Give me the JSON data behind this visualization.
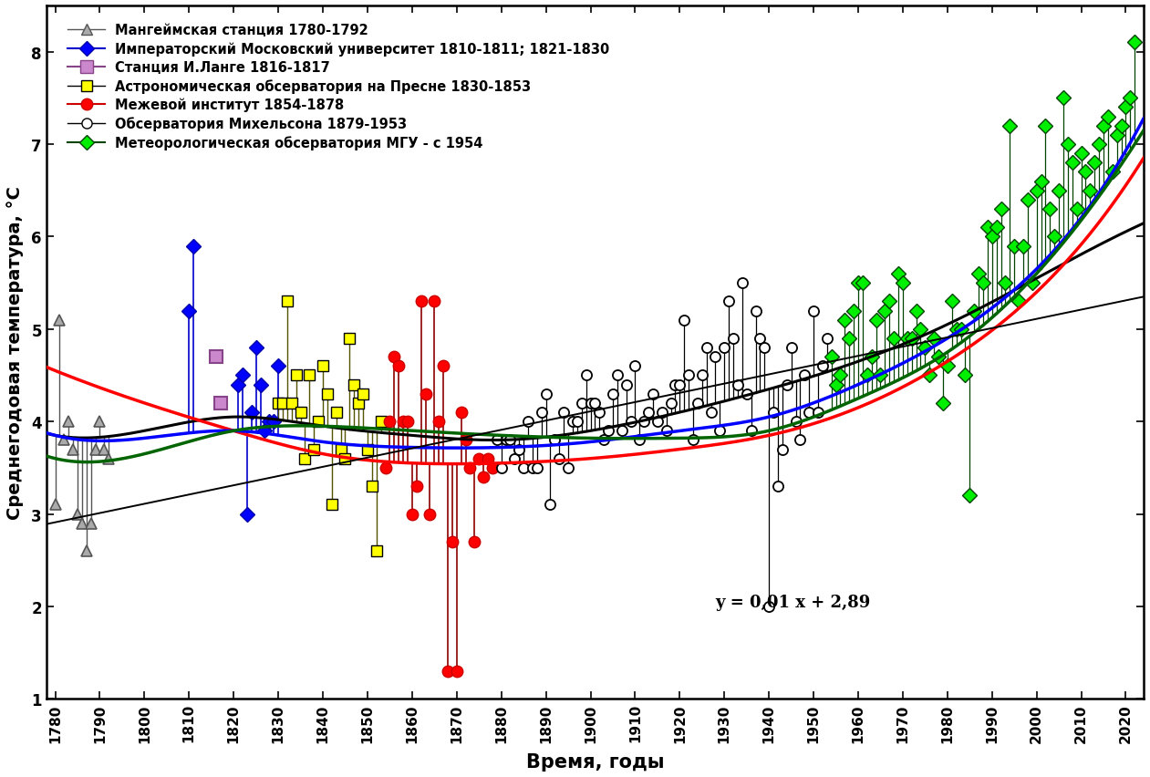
{
  "xlabel": "Время, годы",
  "ylabel": "Среднегодовая температура, °С",
  "xlim": [
    1778,
    2024
  ],
  "ylim": [
    1.0,
    8.5
  ],
  "yticks": [
    1,
    2,
    3,
    4,
    5,
    6,
    7,
    8
  ],
  "xticks": [
    1780,
    1790,
    1800,
    1810,
    1820,
    1830,
    1840,
    1850,
    1860,
    1870,
    1880,
    1890,
    1900,
    1910,
    1920,
    1930,
    1940,
    1950,
    1960,
    1970,
    1980,
    1990,
    2000,
    2010,
    2020
  ],
  "equation_text": "y = 0,01 x + 2,89",
  "equation_x": 1928,
  "equation_y": 2.05,
  "series": {
    "mangheim": {
      "label": "Мангеймская станция 1780-1792",
      "color": "#808080",
      "marker": "^",
      "markersize": 8,
      "years": [
        1780,
        1781,
        1782,
        1783,
        1784,
        1785,
        1786,
        1787,
        1788,
        1789,
        1790,
        1791,
        1792
      ],
      "temps": [
        3.1,
        5.1,
        3.8,
        4.0,
        3.7,
        3.0,
        2.9,
        2.6,
        2.9,
        3.7,
        4.0,
        3.7,
        3.6
      ]
    },
    "imperial": {
      "label": "Императорский Московский университет 1810-1811; 1821-1830",
      "color": "#0000ff",
      "marker": "D",
      "markersize": 8,
      "years": [
        1810,
        1811,
        1821,
        1822,
        1823,
        1824,
        1825,
        1826,
        1827,
        1828,
        1829,
        1830
      ],
      "temps": [
        5.2,
        5.9,
        4.4,
        4.5,
        3.0,
        4.1,
        4.8,
        4.4,
        3.9,
        4.0,
        4.0,
        4.6
      ]
    },
    "lange": {
      "label": "Станция И.Ланге 1816-1817",
      "color": "#aa44aa",
      "marker": "s",
      "markersize": 10,
      "years": [
        1816,
        1817
      ],
      "temps": [
        4.7,
        4.2
      ]
    },
    "presnya": {
      "label": "Астрономическая обсерватория на Пресне 1830-1853",
      "color": "#ffff00",
      "marker": "s",
      "markersize": 9,
      "years": [
        1830,
        1831,
        1832,
        1833,
        1834,
        1835,
        1836,
        1837,
        1838,
        1839,
        1840,
        1841,
        1842,
        1843,
        1844,
        1845,
        1846,
        1847,
        1848,
        1849,
        1850,
        1851,
        1852,
        1853
      ],
      "temps": [
        4.2,
        4.2,
        5.3,
        4.2,
        4.5,
        4.1,
        3.6,
        4.5,
        3.7,
        4.0,
        4.6,
        4.3,
        3.1,
        4.1,
        3.7,
        3.6,
        4.9,
        4.4,
        4.2,
        4.3,
        3.7,
        3.3,
        2.6,
        4.0
      ]
    },
    "mezhevoy": {
      "label": "Межевой институт 1854-1878",
      "color": "#ff0000",
      "marker": "o",
      "markersize": 9,
      "years": [
        1854,
        1855,
        1856,
        1857,
        1858,
        1859,
        1860,
        1861,
        1862,
        1863,
        1864,
        1865,
        1866,
        1867,
        1868,
        1869,
        1870,
        1871,
        1872,
        1873,
        1874,
        1875,
        1876,
        1877,
        1878
      ],
      "temps": [
        3.5,
        4.0,
        4.7,
        4.6,
        4.0,
        4.0,
        3.0,
        3.3,
        5.3,
        4.3,
        3.0,
        5.3,
        4.0,
        4.6,
        1.3,
        2.7,
        1.3,
        4.1,
        3.8,
        3.5,
        2.7,
        3.6,
        3.4,
        3.6,
        3.5
      ]
    },
    "mikhelson": {
      "label": "Обсерватория Михельсона 1879-1953",
      "color": "#000000",
      "marker": "o",
      "markersize": 8,
      "years": [
        1879,
        1880,
        1881,
        1882,
        1883,
        1884,
        1885,
        1886,
        1887,
        1888,
        1889,
        1890,
        1891,
        1892,
        1893,
        1894,
        1895,
        1896,
        1897,
        1898,
        1899,
        1900,
        1901,
        1902,
        1903,
        1904,
        1905,
        1906,
        1907,
        1908,
        1909,
        1910,
        1911,
        1912,
        1913,
        1914,
        1915,
        1916,
        1917,
        1918,
        1919,
        1920,
        1921,
        1922,
        1923,
        1924,
        1925,
        1926,
        1927,
        1928,
        1929,
        1930,
        1931,
        1932,
        1933,
        1934,
        1935,
        1936,
        1937,
        1938,
        1939,
        1940,
        1941,
        1942,
        1943,
        1944,
        1945,
        1946,
        1947,
        1948,
        1949,
        1950,
        1951,
        1952,
        1953
      ],
      "temps": [
        3.8,
        3.5,
        3.8,
        3.8,
        3.6,
        3.7,
        3.5,
        4.0,
        3.5,
        3.5,
        4.1,
        4.3,
        3.1,
        3.8,
        3.6,
        4.1,
        3.5,
        4.0,
        4.0,
        4.2,
        4.5,
        4.2,
        4.2,
        4.1,
        3.8,
        3.9,
        4.3,
        4.5,
        3.9,
        4.4,
        4.0,
        4.6,
        3.8,
        4.0,
        4.1,
        4.3,
        4.0,
        4.1,
        3.9,
        4.2,
        4.4,
        4.4,
        5.1,
        4.5,
        3.8,
        4.2,
        4.5,
        4.8,
        4.1,
        4.7,
        3.9,
        4.8,
        5.3,
        4.9,
        4.4,
        5.5,
        4.3,
        3.9,
        5.2,
        4.9,
        4.8,
        2.0,
        4.1,
        3.3,
        3.7,
        4.4,
        4.8,
        4.0,
        3.8,
        4.5,
        4.1,
        5.2,
        4.1,
        4.6,
        4.9
      ]
    },
    "mgu": {
      "label": "Метеорологическая обсерватория МГУ - с 1954",
      "color": "#006400",
      "marker": "D",
      "markersize": 8,
      "years": [
        1954,
        1955,
        1956,
        1957,
        1958,
        1959,
        1960,
        1961,
        1962,
        1963,
        1964,
        1965,
        1966,
        1967,
        1968,
        1969,
        1970,
        1971,
        1972,
        1973,
        1974,
        1975,
        1976,
        1977,
        1978,
        1979,
        1980,
        1981,
        1982,
        1983,
        1984,
        1985,
        1986,
        1987,
        1988,
        1989,
        1990,
        1991,
        1992,
        1993,
        1994,
        1995,
        1996,
        1997,
        1998,
        1999,
        2000,
        2001,
        2002,
        2003,
        2004,
        2005,
        2006,
        2007,
        2008,
        2009,
        2010,
        2011,
        2012,
        2013,
        2014,
        2015,
        2016,
        2017,
        2018,
        2019,
        2020,
        2021,
        2022
      ],
      "temps": [
        4.7,
        4.4,
        4.5,
        5.1,
        4.9,
        5.2,
        5.5,
        5.5,
        4.5,
        4.7,
        5.1,
        4.5,
        5.2,
        5.3,
        4.9,
        5.6,
        5.5,
        4.9,
        4.9,
        5.2,
        5.0,
        4.8,
        4.5,
        4.9,
        4.7,
        4.2,
        4.6,
        5.3,
        5.0,
        5.0,
        4.5,
        3.2,
        5.2,
        5.6,
        5.5,
        6.1,
        6.0,
        6.1,
        6.3,
        5.5,
        7.2,
        5.9,
        5.3,
        5.9,
        6.4,
        5.5,
        6.5,
        6.6,
        7.2,
        6.3,
        6.0,
        6.5,
        7.5,
        7.0,
        6.8,
        6.3,
        6.9,
        6.7,
        6.5,
        6.8,
        7.0,
        7.2,
        7.3,
        6.7,
        7.1,
        7.2,
        7.4,
        7.5,
        8.1
      ]
    }
  },
  "black_curve_pts_x": [
    1780,
    1800,
    1820,
    1840,
    1860,
    1880,
    1900,
    1920,
    1940,
    1960,
    1980,
    2000,
    2022
  ],
  "black_curve_pts_y": [
    3.85,
    3.9,
    4.05,
    3.95,
    3.85,
    3.8,
    3.9,
    4.1,
    4.35,
    4.65,
    5.05,
    5.55,
    6.1
  ],
  "red_curve_pts_x": [
    1780,
    1800,
    1820,
    1840,
    1860,
    1880,
    1900,
    1920,
    1940,
    1960,
    1980,
    2000,
    2022
  ],
  "red_curve_pts_y": [
    4.55,
    4.2,
    3.9,
    3.65,
    3.55,
    3.55,
    3.6,
    3.7,
    3.85,
    4.15,
    4.65,
    5.4,
    6.7
  ],
  "blue_curve_pts_x": [
    1780,
    1800,
    1820,
    1840,
    1860,
    1880,
    1900,
    1920,
    1940,
    1960,
    1980,
    2000,
    2022
  ],
  "blue_curve_pts_y": [
    3.85,
    3.82,
    3.9,
    3.78,
    3.72,
    3.72,
    3.78,
    3.9,
    4.05,
    4.4,
    4.9,
    5.65,
    7.1
  ],
  "green_curve_pts_x": [
    1780,
    1800,
    1820,
    1840,
    1860,
    1880,
    1900,
    1920,
    1940,
    1960,
    1980,
    2000,
    2022
  ],
  "green_curve_pts_y": [
    3.6,
    3.65,
    3.9,
    3.95,
    3.9,
    3.85,
    3.82,
    3.82,
    3.9,
    4.25,
    4.75,
    5.6,
    7.0
  ],
  "linear_slope": 0.01,
  "linear_intercept": -14.89
}
